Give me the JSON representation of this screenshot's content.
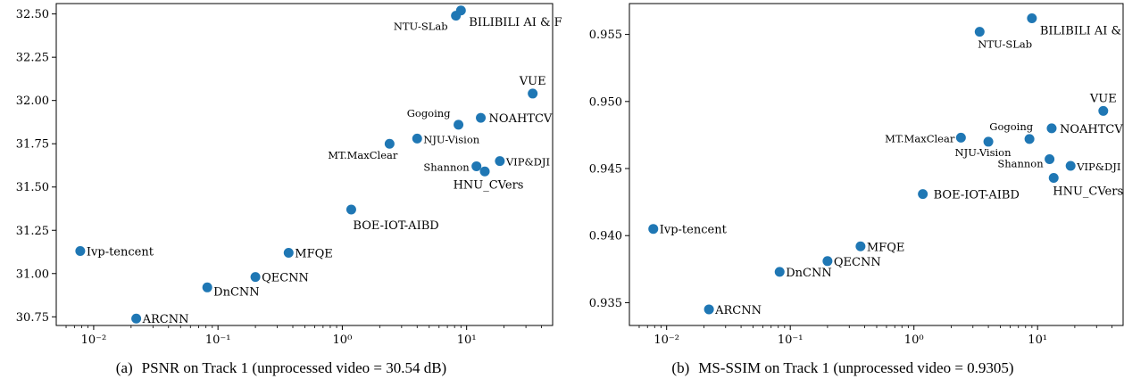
{
  "charts": [
    {
      "id": "a",
      "caption_letter": "(a)",
      "caption_text": "PSNR on Track 1 (unprocessed video = 30.54 dB)"
    },
    {
      "id": "b",
      "caption_letter": "(b)",
      "caption_text": "MS-SSIM on Track 1 (unprocessed video = 0.9305)"
    }
  ],
  "chart_data": [
    {
      "type": "scatter",
      "title": "",
      "xlabel": "",
      "ylabel": "",
      "xscale": "log",
      "xlim": [
        0.005,
        50
      ],
      "ylim": [
        30.7,
        32.56
      ],
      "grid": false,
      "point_color": "#1f77b4",
      "x_ticks": [
        0.01,
        0.1,
        1,
        10
      ],
      "x_tick_labels": [
        "10⁻²",
        "10⁻¹",
        "10⁰",
        "10¹"
      ],
      "y_ticks": [
        30.75,
        31.0,
        31.25,
        31.5,
        31.75,
        32.0,
        32.25,
        32.5
      ],
      "y_tick_labels": [
        "30.75",
        "31.00",
        "31.25",
        "31.50",
        "31.75",
        "32.00",
        "32.25",
        "32.50"
      ],
      "points": [
        {
          "label": "NTU-SLab",
          "x": 8.2,
          "y": 32.49,
          "anchor": "end",
          "dx": -9,
          "dy": 16,
          "size": "small"
        },
        {
          "label": "BILIBILI AI & FDU",
          "x": 9.0,
          "y": 32.52,
          "anchor": "start",
          "dx": 9,
          "dy": 17,
          "size": "normal"
        },
        {
          "label": "VUE",
          "x": 34,
          "y": 32.04,
          "anchor": "middle",
          "dx": 0,
          "dy": -10,
          "size": "normal"
        },
        {
          "label": "Gogoing",
          "x": 8.6,
          "y": 31.86,
          "anchor": "end",
          "dx": -9,
          "dy": -9,
          "size": "small"
        },
        {
          "label": "NOAHTCV",
          "x": 13,
          "y": 31.9,
          "anchor": "start",
          "dx": 9,
          "dy": 5,
          "size": "normal"
        },
        {
          "label": "NJU-Vision",
          "x": 4.0,
          "y": 31.78,
          "anchor": "start",
          "dx": 7,
          "dy": 5,
          "size": "small"
        },
        {
          "label": "MT.MaxClear",
          "x": 2.4,
          "y": 31.75,
          "anchor": "end",
          "dx": 9,
          "dy": 17,
          "size": "small"
        },
        {
          "label": "Shannon",
          "x": 12,
          "y": 31.62,
          "anchor": "end",
          "dx": -8,
          "dy": 5,
          "size": "small"
        },
        {
          "label": "HNU_CVers",
          "x": 14,
          "y": 31.59,
          "anchor": "middle",
          "dx": 4,
          "dy": 19,
          "size": "normal"
        },
        {
          "label": "VIP&DJI",
          "x": 18.5,
          "y": 31.65,
          "anchor": "start",
          "dx": 7,
          "dy": 5,
          "size": "small"
        },
        {
          "label": "BOE-IOT-AIBD",
          "x": 1.18,
          "y": 31.37,
          "anchor": "start",
          "dx": 2,
          "dy": 22,
          "size": "normal"
        },
        {
          "label": "Ivp-tencent",
          "x": 0.0078,
          "y": 31.13,
          "anchor": "start",
          "dx": 7,
          "dy": 5,
          "size": "normal"
        },
        {
          "label": "MFQE",
          "x": 0.37,
          "y": 31.12,
          "anchor": "start",
          "dx": 7,
          "dy": 5,
          "size": "normal"
        },
        {
          "label": "QECNN",
          "x": 0.2,
          "y": 30.98,
          "anchor": "start",
          "dx": 7,
          "dy": 5,
          "size": "normal"
        },
        {
          "label": "DnCNN",
          "x": 0.082,
          "y": 30.92,
          "anchor": "start",
          "dx": 7,
          "dy": 9,
          "size": "normal"
        },
        {
          "label": "ARCNN",
          "x": 0.022,
          "y": 30.74,
          "anchor": "start",
          "dx": 7,
          "dy": 5,
          "size": "normal"
        }
      ]
    },
    {
      "type": "scatter",
      "title": "",
      "xlabel": "",
      "ylabel": "",
      "xscale": "log",
      "xlim": [
        0.005,
        50
      ],
      "ylim": [
        0.9333,
        0.9573
      ],
      "grid": false,
      "point_color": "#1f77b4",
      "x_ticks": [
        0.01,
        0.1,
        1,
        10
      ],
      "x_tick_labels": [
        "10⁻²",
        "10⁻¹",
        "10⁰",
        "10¹"
      ],
      "y_ticks": [
        0.935,
        0.94,
        0.945,
        0.95,
        0.955
      ],
      "y_tick_labels": [
        "0.935",
        "0.940",
        "0.945",
        "0.950",
        "0.955"
      ],
      "points": [
        {
          "label": "BILIBILI AI & FDU",
          "x": 9.0,
          "y": 0.9562,
          "anchor": "start",
          "dx": 9,
          "dy": 18,
          "size": "normal"
        },
        {
          "label": "NTU-SLab",
          "x": 3.4,
          "y": 0.9552,
          "anchor": "start",
          "dx": -2,
          "dy": 18,
          "size": "small"
        },
        {
          "label": "VUE",
          "x": 34,
          "y": 0.9493,
          "anchor": "middle",
          "dx": 0,
          "dy": -10,
          "size": "normal"
        },
        {
          "label": "Gogoing",
          "x": 8.6,
          "y": 0.9472,
          "anchor": "end",
          "dx": 4,
          "dy": -10,
          "size": "small"
        },
        {
          "label": "NOAHTCV",
          "x": 13,
          "y": 0.948,
          "anchor": "start",
          "dx": 9,
          "dy": 5,
          "size": "normal"
        },
        {
          "label": "MT.MaxClear",
          "x": 2.4,
          "y": 0.9473,
          "anchor": "end",
          "dx": -7,
          "dy": 5,
          "size": "small"
        },
        {
          "label": "NJU-Vision",
          "x": 4.0,
          "y": 0.947,
          "anchor": "middle",
          "dx": -6,
          "dy": 16,
          "size": "small"
        },
        {
          "label": "Shannon",
          "x": 12.5,
          "y": 0.9457,
          "anchor": "end",
          "dx": -7,
          "dy": 9,
          "size": "small"
        },
        {
          "label": "VIP&DJI",
          "x": 18.5,
          "y": 0.9452,
          "anchor": "start",
          "dx": 7,
          "dy": 5,
          "size": "small"
        },
        {
          "label": "HNU_CVers",
          "x": 13.5,
          "y": 0.9443,
          "anchor": "start",
          "dx": -1,
          "dy": 19,
          "size": "normal"
        },
        {
          "label": "BOE-IOT-AIBD",
          "x": 1.18,
          "y": 0.9431,
          "anchor": "start",
          "dx": 12,
          "dy": 5,
          "size": "normal"
        },
        {
          "label": "Ivp-tencent",
          "x": 0.0078,
          "y": 0.9405,
          "anchor": "start",
          "dx": 7,
          "dy": 5,
          "size": "normal"
        },
        {
          "label": "MFQE",
          "x": 0.37,
          "y": 0.9392,
          "anchor": "start",
          "dx": 7,
          "dy": 5,
          "size": "normal"
        },
        {
          "label": "QECNN",
          "x": 0.2,
          "y": 0.9381,
          "anchor": "start",
          "dx": 7,
          "dy": 5,
          "size": "normal"
        },
        {
          "label": "DnCNN",
          "x": 0.082,
          "y": 0.9373,
          "anchor": "start",
          "dx": 7,
          "dy": 5,
          "size": "normal"
        },
        {
          "label": "ARCNN",
          "x": 0.022,
          "y": 0.9345,
          "anchor": "start",
          "dx": 7,
          "dy": 5,
          "size": "normal"
        }
      ]
    }
  ]
}
